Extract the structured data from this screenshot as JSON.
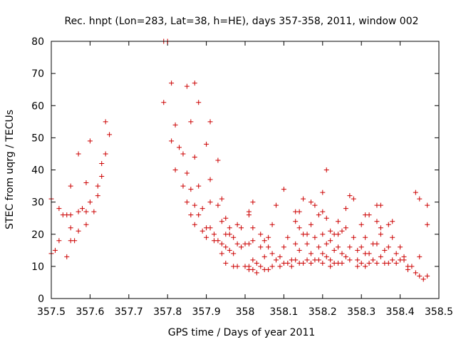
{
  "chart_data": {
    "type": "scatter",
    "title": "Rec. hnpt (Lon=283, Lat=38, h=HE), days 357-358, 2011, window 002",
    "xlabel": "GPS time / Days of year 2011",
    "ylabel": "STEC from uqrg / TECUs",
    "xlim": [
      357.5,
      358.5
    ],
    "ylim": [
      0,
      80
    ],
    "xticks": [
      357.5,
      357.6,
      357.7,
      357.8,
      357.9,
      358.0,
      358.1,
      358.2,
      358.3,
      358.4,
      358.5
    ],
    "xtick_labels": [
      "357.5",
      "357.6",
      "357.7",
      "357.8",
      "357.9",
      "358",
      "358.1",
      "358.2",
      "358.3",
      "358.4",
      "358.5"
    ],
    "yticks": [
      0,
      10,
      20,
      30,
      40,
      50,
      60,
      70,
      80
    ],
    "ytick_labels": [
      "0",
      "10",
      "20",
      "30",
      "40",
      "50",
      "60",
      "70",
      "80"
    ],
    "marker": "plus",
    "color": "#cc0000",
    "series": [
      {
        "name": "STEC",
        "points": [
          [
            357.5,
            31
          ],
          [
            357.5,
            14
          ],
          [
            357.51,
            15
          ],
          [
            357.52,
            28
          ],
          [
            357.52,
            18
          ],
          [
            357.53,
            26
          ],
          [
            357.54,
            13
          ],
          [
            357.54,
            26
          ],
          [
            357.55,
            18
          ],
          [
            357.55,
            35
          ],
          [
            357.55,
            26
          ],
          [
            357.55,
            22
          ],
          [
            357.56,
            18
          ],
          [
            357.57,
            27
          ],
          [
            357.57,
            21
          ],
          [
            357.57,
            45
          ],
          [
            357.58,
            28
          ],
          [
            357.59,
            36
          ],
          [
            357.59,
            27
          ],
          [
            357.59,
            23
          ],
          [
            357.6,
            49
          ],
          [
            357.6,
            30
          ],
          [
            357.61,
            27
          ],
          [
            357.62,
            32
          ],
          [
            357.62,
            35
          ],
          [
            357.63,
            42
          ],
          [
            357.63,
            38
          ],
          [
            357.64,
            55
          ],
          [
            357.64,
            45
          ],
          [
            357.65,
            51
          ],
          [
            357.79,
            61
          ],
          [
            357.79,
            80
          ],
          [
            357.8,
            80
          ],
          [
            357.81,
            67
          ],
          [
            357.81,
            49
          ],
          [
            357.82,
            54
          ],
          [
            357.82,
            40
          ],
          [
            357.83,
            47
          ],
          [
            357.84,
            45
          ],
          [
            357.84,
            35
          ],
          [
            357.85,
            66
          ],
          [
            357.85,
            39
          ],
          [
            357.85,
            30
          ],
          [
            357.86,
            55
          ],
          [
            357.86,
            34
          ],
          [
            357.86,
            26
          ],
          [
            357.87,
            67
          ],
          [
            357.87,
            44
          ],
          [
            357.87,
            29
          ],
          [
            357.87,
            23
          ],
          [
            357.88,
            61
          ],
          [
            357.88,
            35
          ],
          [
            357.88,
            26
          ],
          [
            357.89,
            21
          ],
          [
            357.89,
            28
          ],
          [
            357.9,
            48
          ],
          [
            357.9,
            19
          ],
          [
            357.9,
            22
          ],
          [
            357.91,
            55
          ],
          [
            357.91,
            37
          ],
          [
            357.91,
            30
          ],
          [
            357.91,
            22
          ],
          [
            357.92,
            20
          ],
          [
            357.92,
            18
          ],
          [
            357.93,
            43
          ],
          [
            357.93,
            29
          ],
          [
            357.93,
            18
          ],
          [
            357.94,
            31
          ],
          [
            357.94,
            17
          ],
          [
            357.94,
            24
          ],
          [
            357.94,
            14
          ],
          [
            357.95,
            25
          ],
          [
            357.95,
            20
          ],
          [
            357.95,
            16
          ],
          [
            357.95,
            11
          ],
          [
            357.96,
            22
          ],
          [
            357.96,
            20
          ],
          [
            357.96,
            15
          ],
          [
            357.97,
            19
          ],
          [
            357.97,
            14
          ],
          [
            357.97,
            10
          ],
          [
            357.98,
            23
          ],
          [
            357.98,
            17
          ],
          [
            357.98,
            10
          ],
          [
            357.99,
            22
          ],
          [
            357.99,
            16
          ],
          [
            358.0,
            10
          ],
          [
            358.0,
            17
          ],
          [
            358.01,
            27
          ],
          [
            358.01,
            26
          ],
          [
            358.01,
            17
          ],
          [
            358.01,
            10
          ],
          [
            358.01,
            9
          ],
          [
            358.02,
            30
          ],
          [
            358.02,
            22
          ],
          [
            358.02,
            18
          ],
          [
            358.02,
            12
          ],
          [
            358.02,
            9
          ],
          [
            358.03,
            8
          ],
          [
            358.03,
            11
          ],
          [
            358.04,
            20
          ],
          [
            358.04,
            16
          ],
          [
            358.04,
            10
          ],
          [
            358.05,
            18
          ],
          [
            358.05,
            13
          ],
          [
            358.05,
            9
          ],
          [
            358.06,
            19
          ],
          [
            358.06,
            16
          ],
          [
            358.06,
            9
          ],
          [
            358.07,
            23
          ],
          [
            358.07,
            14
          ],
          [
            358.07,
            10
          ],
          [
            358.08,
            29
          ],
          [
            358.08,
            12
          ],
          [
            358.09,
            13
          ],
          [
            358.09,
            10
          ],
          [
            358.1,
            34
          ],
          [
            358.1,
            16
          ],
          [
            358.1,
            11
          ],
          [
            358.11,
            19
          ],
          [
            358.11,
            11
          ],
          [
            358.12,
            10
          ],
          [
            358.12,
            12
          ],
          [
            358.13,
            27
          ],
          [
            358.13,
            24
          ],
          [
            358.13,
            17
          ],
          [
            358.13,
            12
          ],
          [
            358.14,
            22
          ],
          [
            358.14,
            27
          ],
          [
            358.14,
            15
          ],
          [
            358.14,
            11
          ],
          [
            358.15,
            31
          ],
          [
            358.15,
            20
          ],
          [
            358.15,
            11
          ],
          [
            358.16,
            17
          ],
          [
            358.16,
            12
          ],
          [
            358.16,
            20
          ],
          [
            358.17,
            30
          ],
          [
            358.17,
            23
          ],
          [
            358.17,
            14
          ],
          [
            358.17,
            11
          ],
          [
            358.18,
            29
          ],
          [
            358.18,
            19
          ],
          [
            358.18,
            12
          ],
          [
            358.19,
            26
          ],
          [
            358.19,
            16
          ],
          [
            358.19,
            12
          ],
          [
            358.2,
            33
          ],
          [
            358.2,
            27
          ],
          [
            358.2,
            20
          ],
          [
            358.2,
            14
          ],
          [
            358.2,
            11
          ],
          [
            358.21,
            40
          ],
          [
            358.21,
            25
          ],
          [
            358.21,
            17
          ],
          [
            358.21,
            13
          ],
          [
            358.22,
            21
          ],
          [
            358.22,
            18
          ],
          [
            358.22,
            12
          ],
          [
            358.22,
            10
          ],
          [
            358.23,
            20
          ],
          [
            358.23,
            15
          ],
          [
            358.23,
            11
          ],
          [
            358.24,
            24
          ],
          [
            358.24,
            20
          ],
          [
            358.24,
            16
          ],
          [
            358.24,
            11
          ],
          [
            358.25,
            21
          ],
          [
            358.25,
            14
          ],
          [
            358.25,
            11
          ],
          [
            358.26,
            28
          ],
          [
            358.26,
            22
          ],
          [
            358.26,
            13
          ],
          [
            358.27,
            16
          ],
          [
            358.27,
            12
          ],
          [
            358.27,
            32
          ],
          [
            358.28,
            19
          ],
          [
            358.28,
            31
          ],
          [
            358.29,
            15
          ],
          [
            358.29,
            12
          ],
          [
            358.29,
            10
          ],
          [
            358.3,
            23
          ],
          [
            358.3,
            16
          ],
          [
            358.3,
            11
          ],
          [
            358.31,
            26
          ],
          [
            358.31,
            19
          ],
          [
            358.31,
            14
          ],
          [
            358.31,
            10
          ],
          [
            358.32,
            26
          ],
          [
            358.32,
            14
          ],
          [
            358.32,
            11
          ],
          [
            358.33,
            17
          ],
          [
            358.33,
            12
          ],
          [
            358.34,
            24
          ],
          [
            358.34,
            17
          ],
          [
            358.34,
            29
          ],
          [
            358.34,
            11
          ],
          [
            358.35,
            22
          ],
          [
            358.35,
            20
          ],
          [
            358.35,
            13
          ],
          [
            358.35,
            29
          ],
          [
            358.36,
            15
          ],
          [
            358.36,
            11
          ],
          [
            358.37,
            23
          ],
          [
            358.37,
            16
          ],
          [
            358.37,
            11
          ],
          [
            358.38,
            24
          ],
          [
            358.38,
            19
          ],
          [
            358.38,
            12
          ],
          [
            358.39,
            14
          ],
          [
            358.39,
            11
          ],
          [
            358.4,
            16
          ],
          [
            358.4,
            12
          ],
          [
            358.41,
            13
          ],
          [
            358.41,
            12
          ],
          [
            358.42,
            10
          ],
          [
            358.42,
            9
          ],
          [
            358.43,
            10
          ],
          [
            358.44,
            8
          ],
          [
            358.44,
            33
          ],
          [
            358.45,
            13
          ],
          [
            358.45,
            31
          ],
          [
            358.45,
            7
          ],
          [
            358.46,
            6
          ],
          [
            358.47,
            23
          ],
          [
            358.47,
            29
          ],
          [
            358.47,
            7
          ]
        ]
      }
    ]
  }
}
